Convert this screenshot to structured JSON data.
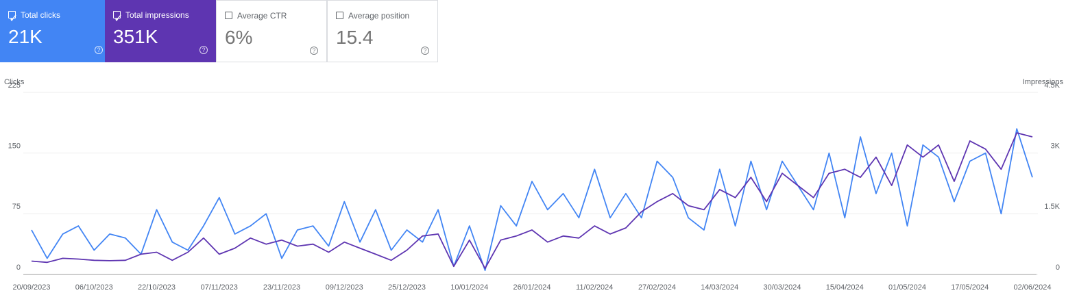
{
  "other_metrics": [
    {
      "name": "Average CTR",
      "total": "6%"
    },
    {
      "name": "Average position",
      "total": "15.4"
    }
  ],
  "chart_data": {
    "type": "line",
    "y_label": "Clicks",
    "y2_label": "Impressions",
    "x": [
      "20/09/2023",
      "24/09/2023",
      "28/09/2023",
      "02/10/2023",
      "06/10/2023",
      "10/10/2023",
      "14/10/2023",
      "18/10/2023",
      "22/10/2023",
      "26/10/2023",
      "30/10/2023",
      "03/11/2023",
      "07/11/2023",
      "11/11/2023",
      "15/11/2023",
      "19/11/2023",
      "23/11/2023",
      "27/11/2023",
      "01/12/2023",
      "05/12/2023",
      "09/12/2023",
      "13/12/2023",
      "17/12/2023",
      "21/12/2023",
      "25/12/2023",
      "29/12/2023",
      "02/01/2024",
      "06/01/2024",
      "10/01/2024",
      "14/01/2024",
      "18/01/2024",
      "22/01/2024",
      "26/01/2024",
      "30/01/2024",
      "03/02/2024",
      "07/02/2024",
      "11/02/2024",
      "15/02/2024",
      "19/02/2024",
      "23/02/2024",
      "27/02/2024",
      "02/03/2024",
      "06/03/2024",
      "10/03/2024",
      "14/03/2024",
      "18/03/2024",
      "22/03/2024",
      "26/03/2024",
      "30/03/2024",
      "03/04/2024",
      "07/04/2024",
      "11/04/2024",
      "15/04/2024",
      "19/04/2024",
      "23/04/2024",
      "27/04/2024",
      "01/05/2024",
      "05/05/2024",
      "09/05/2024",
      "13/05/2024",
      "17/05/2024",
      "21/05/2024",
      "25/05/2024",
      "29/05/2024",
      "02/06/2024"
    ],
    "series": [
      {
        "name": "Total clicks",
        "total": "21K",
        "color": "#4285f4",
        "axis": "y",
        "values": [
          55,
          20,
          50,
          60,
          30,
          50,
          45,
          25,
          80,
          40,
          30,
          60,
          95,
          50,
          60,
          75,
          20,
          55,
          60,
          35,
          90,
          40,
          80,
          30,
          55,
          40,
          80,
          10,
          60,
          5,
          85,
          60,
          115,
          80,
          100,
          70,
          130,
          70,
          100,
          70,
          140,
          120,
          70,
          55,
          130,
          60,
          140,
          80,
          140,
          110,
          80,
          150,
          70,
          170,
          100,
          150,
          60,
          160,
          145,
          90,
          140,
          150,
          75,
          180,
          120
        ]
      },
      {
        "name": "Total impressions",
        "total": "351K",
        "color": "#5e35b1",
        "axis": "y2",
        "values": [
          330,
          300,
          400,
          380,
          350,
          340,
          350,
          500,
          550,
          350,
          550,
          900,
          500,
          650,
          900,
          750,
          850,
          700,
          750,
          550,
          800,
          650,
          500,
          350,
          600,
          950,
          1000,
          200,
          850,
          150,
          850,
          950,
          1100,
          800,
          950,
          900,
          1200,
          1000,
          1150,
          1550,
          1800,
          2000,
          1700,
          1600,
          2100,
          1900,
          2400,
          1800,
          2500,
          2200,
          1900,
          2500,
          2600,
          2400,
          2900,
          2200,
          3200,
          2900,
          3200,
          2300,
          3300,
          3100,
          2600,
          3500,
          3400
        ]
      }
    ],
    "ylim": [
      0,
      225
    ],
    "yticks": [
      0,
      75,
      150,
      225
    ],
    "y2lim": [
      0,
      4500
    ],
    "y2ticks": [
      0,
      {
        "value": 1500,
        "label": "1.5K"
      },
      {
        "value": 3000,
        "label": "3K"
      },
      {
        "value": 4500,
        "label": "4.5K"
      }
    ],
    "grid": true
  }
}
